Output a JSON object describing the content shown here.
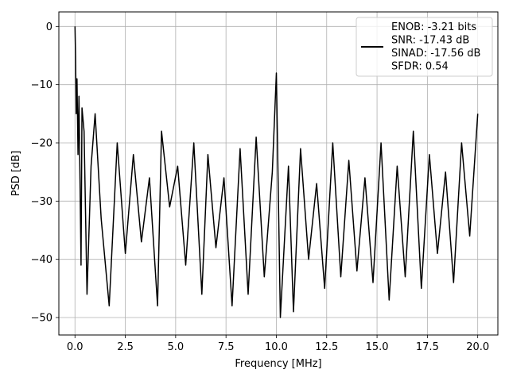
{
  "chart_data": {
    "type": "line",
    "title": "",
    "xlabel": "Frequency [MHz]",
    "ylabel": "PSD [dB]",
    "xlim": [
      -0.8,
      21.0
    ],
    "ylim": [
      -53.0,
      2.5
    ],
    "x_ticks": [
      0.0,
      2.5,
      5.0,
      7.5,
      10.0,
      12.5,
      15.0,
      17.5,
      20.0
    ],
    "x_tick_labels": [
      "0.0",
      "2.5",
      "5.0",
      "7.5",
      "10.0",
      "12.5",
      "15.0",
      "17.5",
      "20.0"
    ],
    "y_ticks": [
      0,
      -10,
      -20,
      -30,
      -40,
      -50
    ],
    "y_tick_labels": [
      "0",
      "−10",
      "−20",
      "−30",
      "−40",
      "−50"
    ],
    "grid": true,
    "legend_position": "top-right",
    "legend_lines": [
      "ENOB: -3.21 bits",
      "SNR: -17.43 dB",
      "SINAD: -17.56 dB",
      "SFDR: 0.54"
    ],
    "series": [
      {
        "color": "#000000",
        "x": [
          0,
          0.03,
          0.06,
          0.1,
          0.15,
          0.2,
          0.3,
          0.35,
          0.45,
          0.6,
          0.8,
          1.0,
          1.3,
          1.7,
          2.1,
          2.5,
          2.9,
          3.3,
          3.7,
          4.1,
          4.3,
          4.7,
          5.1,
          5.5,
          5.9,
          6.3,
          6.6,
          7.0,
          7.4,
          7.8,
          8.2,
          8.6,
          9.0,
          9.4,
          9.8,
          10.0,
          10.2,
          10.6,
          10.85,
          11.2,
          11.6,
          12.0,
          12.4,
          12.8,
          13.2,
          13.6,
          14.0,
          14.4,
          14.8,
          15.2,
          15.6,
          16.0,
          16.4,
          16.8,
          17.2,
          17.6,
          18.0,
          18.4,
          18.8,
          19.2,
          19.6,
          20.0
        ],
        "y": [
          0,
          -5,
          -15,
          -9,
          -22,
          -12,
          -41,
          -14,
          -18,
          -46,
          -24,
          -15,
          -33,
          -48,
          -20,
          -39,
          -22,
          -37,
          -26,
          -48,
          -18,
          -31,
          -24,
          -41,
          -20,
          -46,
          -22,
          -38,
          -26,
          -48,
          -21,
          -46,
          -19,
          -43,
          -25,
          -8,
          -50,
          -24,
          -49,
          -21,
          -40,
          -27,
          -45,
          -20,
          -43,
          -23,
          -42,
          -26,
          -44,
          -20,
          -47,
          -24,
          -43,
          -18,
          -45,
          -22,
          -39,
          -25,
          -44,
          -20,
          -36,
          -15
        ]
      }
    ]
  }
}
